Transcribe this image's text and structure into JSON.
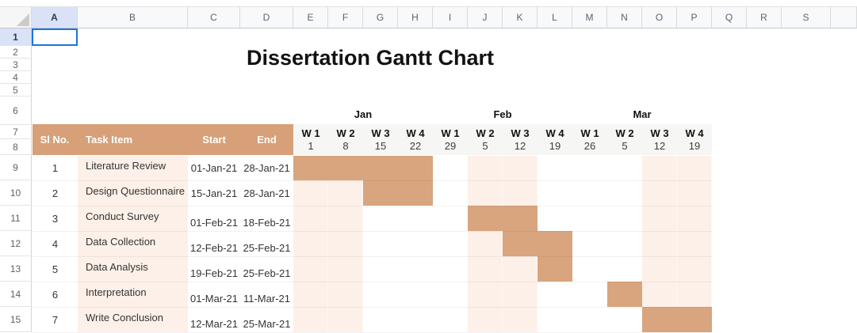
{
  "title": "Dissertation Gantt Chart",
  "grid": {
    "column_letters": [
      "A",
      "B",
      "C",
      "D",
      "E",
      "F",
      "G",
      "H",
      "I",
      "J",
      "K",
      "L",
      "M",
      "N",
      "O",
      "P",
      "Q",
      "R",
      "S"
    ],
    "row_numbers": [
      "1",
      "2",
      "3",
      "4",
      "5",
      "6",
      "7",
      "8",
      "9",
      "10",
      "11",
      "12",
      "13",
      "14",
      "15"
    ],
    "selected_cell": "A1",
    "selected_column": "A",
    "selected_row": "1"
  },
  "gantt": {
    "headers": {
      "sl_no": "Sl No.",
      "task_item": "Task Item",
      "start": "Start",
      "end": "End"
    },
    "months": [
      {
        "label": "Jan",
        "week_span": 4
      },
      {
        "label": "Feb",
        "week_span": 4
      },
      {
        "label": "Mar",
        "week_span": 4
      }
    ],
    "weeks": [
      {
        "label": "W 1",
        "date": "1"
      },
      {
        "label": "W 2",
        "date": "8"
      },
      {
        "label": "W 3",
        "date": "15"
      },
      {
        "label": "W 4",
        "date": "22"
      },
      {
        "label": "W 1",
        "date": "29"
      },
      {
        "label": "W 2",
        "date": "5"
      },
      {
        "label": "W 3",
        "date": "12"
      },
      {
        "label": "W 4",
        "date": "19"
      },
      {
        "label": "W 1",
        "date": "26"
      },
      {
        "label": "W 2",
        "date": "5"
      },
      {
        "label": "W 3",
        "date": "12"
      },
      {
        "label": "W 4",
        "date": "19"
      }
    ],
    "shaded_week_columns": [
      0,
      1,
      5,
      6,
      10,
      11
    ],
    "tasks": [
      {
        "sl": "1",
        "name": "Literature Review",
        "start": "01-Jan-21",
        "end": "28-Jan-21",
        "bar_col": 0,
        "bar_span": 4,
        "date_align": "center"
      },
      {
        "sl": "2",
        "name": "Design Questionnaire",
        "start": "15-Jan-21",
        "end": "28-Jan-21",
        "bar_col": 2,
        "bar_span": 2,
        "date_align": "center"
      },
      {
        "sl": "3",
        "name": "Conduct Survey",
        "start": "01-Feb-21",
        "end": "18-Feb-21",
        "bar_col": 5,
        "bar_span": 2,
        "date_align": "low"
      },
      {
        "sl": "4",
        "name": "Data Collection",
        "start": "12-Feb-21",
        "end": "25-Feb-21",
        "bar_col": 6,
        "bar_span": 2,
        "date_align": "low"
      },
      {
        "sl": "5",
        "name": "Data Analysis",
        "start": "19-Feb-21",
        "end": "25-Feb-21",
        "bar_col": 7,
        "bar_span": 1,
        "date_align": "low"
      },
      {
        "sl": "6",
        "name": "Interpretation",
        "start": "01-Mar-21",
        "end": "11-Mar-21",
        "bar_col": 9,
        "bar_span": 1,
        "date_align": "low"
      },
      {
        "sl": "7",
        "name": "Write Conclusion",
        "start": "12-Mar-21",
        "end": "25-Mar-21",
        "bar_col": 10,
        "bar_span": 2,
        "date_align": "low"
      }
    ]
  },
  "colors": {
    "table_header_fill": "#d7a078",
    "bar_fill": "#d8a57e",
    "week_shade_fill": "#fcf0e9",
    "header_band_fill": "#f6f6f4",
    "selection_border": "#1a73e8",
    "selected_header_fill": "#d9e2f7",
    "header_text": "#ffffff"
  }
}
